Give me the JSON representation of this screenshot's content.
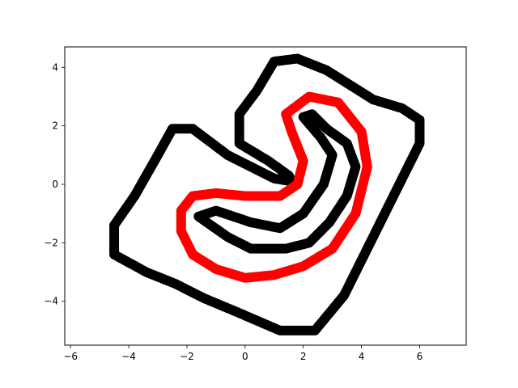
{
  "chart_data": {
    "type": "scatter",
    "title": "",
    "xlabel": "",
    "ylabel": "",
    "xlim": [
      -6.2,
      7.6
    ],
    "ylim": [
      -5.5,
      4.7
    ],
    "x_ticks": [
      -6,
      -4,
      -2,
      0,
      2,
      4,
      6
    ],
    "y_ticks": [
      -4,
      -2,
      0,
      2,
      4
    ],
    "x_tick_labels": [
      "−6",
      "−4",
      "−2",
      "0",
      "2",
      "4",
      "6"
    ],
    "y_tick_labels": [
      "−4",
      "−2",
      "0",
      "2",
      "4"
    ],
    "grid": false,
    "legend": "none",
    "series": [
      {
        "color": "#000000",
        "closed": true,
        "points": [
          [
            -0.2,
            1.4
          ],
          [
            -0.2,
            2.4
          ],
          [
            0.4,
            3.2
          ],
          [
            1.0,
            4.2
          ],
          [
            1.8,
            4.3
          ],
          [
            2.8,
            3.9
          ],
          [
            4.4,
            2.9
          ],
          [
            5.4,
            2.6
          ],
          [
            6.0,
            2.2
          ],
          [
            6.0,
            1.4
          ],
          [
            5.4,
            0.2
          ],
          [
            4.4,
            -1.8
          ],
          [
            3.4,
            -3.8
          ],
          [
            2.4,
            -5.0
          ],
          [
            1.2,
            -5.0
          ],
          [
            -0.2,
            -4.4
          ],
          [
            -1.4,
            -3.9
          ],
          [
            -2.4,
            -3.4
          ],
          [
            -3.4,
            -3.0
          ],
          [
            -4.5,
            -2.4
          ],
          [
            -4.5,
            -1.4
          ],
          [
            -3.8,
            -0.4
          ],
          [
            -3.0,
            1.0
          ],
          [
            -2.5,
            1.9
          ],
          [
            -1.8,
            1.9
          ],
          [
            -1.4,
            1.6
          ],
          [
            -0.6,
            1.0
          ],
          [
            0.2,
            0.6
          ],
          [
            1.0,
            0.2
          ],
          [
            1.6,
            0.1
          ],
          [
            1.5,
            0.3
          ],
          [
            0.8,
            0.8
          ],
          [
            -0.2,
            1.4
          ]
        ]
      },
      {
        "color": "#000000",
        "closed": true,
        "points": [
          [
            2.0,
            2.3
          ],
          [
            2.3,
            2.4
          ],
          [
            2.8,
            1.9
          ],
          [
            3.5,
            1.4
          ],
          [
            3.8,
            0.6
          ],
          [
            3.5,
            -0.4
          ],
          [
            2.9,
            -1.3
          ],
          [
            2.2,
            -2.0
          ],
          [
            1.4,
            -2.2
          ],
          [
            0.2,
            -2.2
          ],
          [
            -0.6,
            -1.8
          ],
          [
            -1.6,
            -1.1
          ],
          [
            -1.0,
            -0.9
          ],
          [
            0.2,
            -1.3
          ],
          [
            1.2,
            -1.5
          ],
          [
            2.0,
            -1.0
          ],
          [
            2.7,
            0.0
          ],
          [
            3.0,
            1.0
          ],
          [
            2.6,
            1.6
          ],
          [
            2.0,
            2.3
          ]
        ]
      },
      {
        "color": "#ff0000",
        "closed": true,
        "points": [
          [
            2.2,
            3.0
          ],
          [
            3.2,
            2.8
          ],
          [
            4.0,
            1.8
          ],
          [
            4.2,
            0.6
          ],
          [
            3.8,
            -1.0
          ],
          [
            3.0,
            -2.2
          ],
          [
            2.0,
            -2.8
          ],
          [
            1.0,
            -3.1
          ],
          [
            0.0,
            -3.2
          ],
          [
            -1.0,
            -2.9
          ],
          [
            -1.8,
            -2.4
          ],
          [
            -2.2,
            -1.6
          ],
          [
            -2.2,
            -0.9
          ],
          [
            -1.8,
            -0.4
          ],
          [
            -1.0,
            -0.3
          ],
          [
            0.0,
            -0.4
          ],
          [
            1.2,
            -0.4
          ],
          [
            1.8,
            0.0
          ],
          [
            2.0,
            0.8
          ],
          [
            1.6,
            1.8
          ],
          [
            1.4,
            2.4
          ],
          [
            2.2,
            3.0
          ]
        ]
      }
    ]
  }
}
